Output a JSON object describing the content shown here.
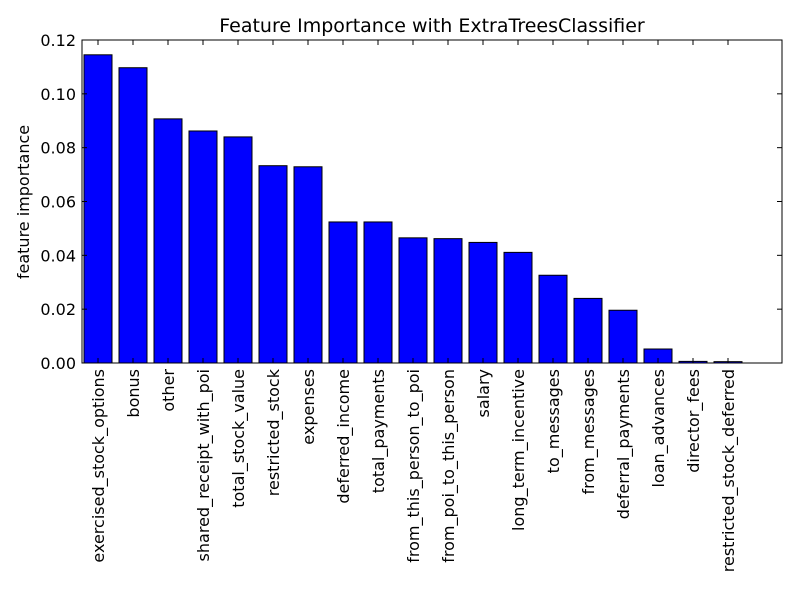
{
  "chart_data": {
    "type": "bar",
    "title": "Feature Importance with ExtraTreesClassifier",
    "xlabel": "",
    "ylabel": "feature importance",
    "categories": [
      "exercised_stock_options",
      "bonus",
      "other",
      "shared_receipt_with_poi",
      "total_stock_value",
      "restricted_stock",
      "expenses",
      "deferred_income",
      "total_payments",
      "from_this_person_to_poi",
      "from_poi_to_this_person",
      "salary",
      "long_term_incentive",
      "to_messages",
      "from_messages",
      "deferral_payments",
      "loan_advances",
      "director_fees",
      "restricted_stock_deferred"
    ],
    "values": [
      0.1145,
      0.1097,
      0.0907,
      0.0862,
      0.084,
      0.0733,
      0.0729,
      0.0524,
      0.0524,
      0.0465,
      0.0462,
      0.0448,
      0.0411,
      0.0326,
      0.024,
      0.0196,
      0.0052,
      0.0006,
      0.0005
    ],
    "ylim": [
      0,
      0.12
    ],
    "yticks": [
      "0.00",
      "0.02",
      "0.04",
      "0.06",
      "0.08",
      "0.10",
      "0.12"
    ],
    "bar_color": "#0000ff",
    "grid": false
  }
}
